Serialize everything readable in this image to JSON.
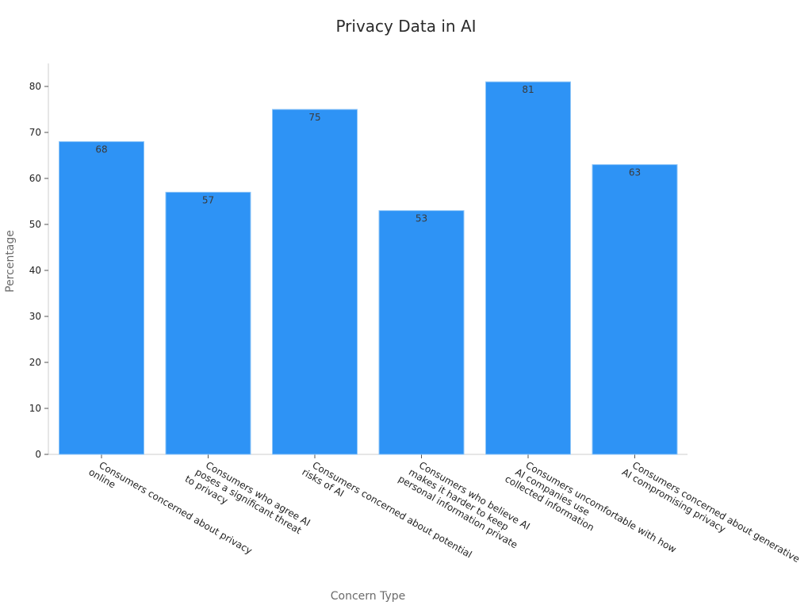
{
  "chart_data": {
    "type": "bar",
    "title": "Privacy Data in AI",
    "xlabel": "Concern Type",
    "ylabel": "Percentage",
    "ylim": [
      0,
      85
    ],
    "yticks": [
      0,
      10,
      20,
      30,
      40,
      50,
      60,
      70,
      80
    ],
    "categories": [
      [
        "Consumers concerned about privacy",
        "online"
      ],
      [
        "Consumers who agree AI",
        "poses a significant threat",
        "to privacy"
      ],
      [
        "Consumers concerned about potential",
        "risks of AI"
      ],
      [
        "Consumers who believe AI",
        "makes it harder to keep",
        "personal information private"
      ],
      [
        "Consumers uncomfortable with how",
        "AI companies use",
        "collected information"
      ],
      [
        "Consumers concerned about generative",
        "AI compromising privacy"
      ]
    ],
    "values": [
      68,
      57,
      75,
      53,
      81,
      63
    ],
    "bar_color": "#2e93f5",
    "grid": false,
    "legend": "none"
  }
}
